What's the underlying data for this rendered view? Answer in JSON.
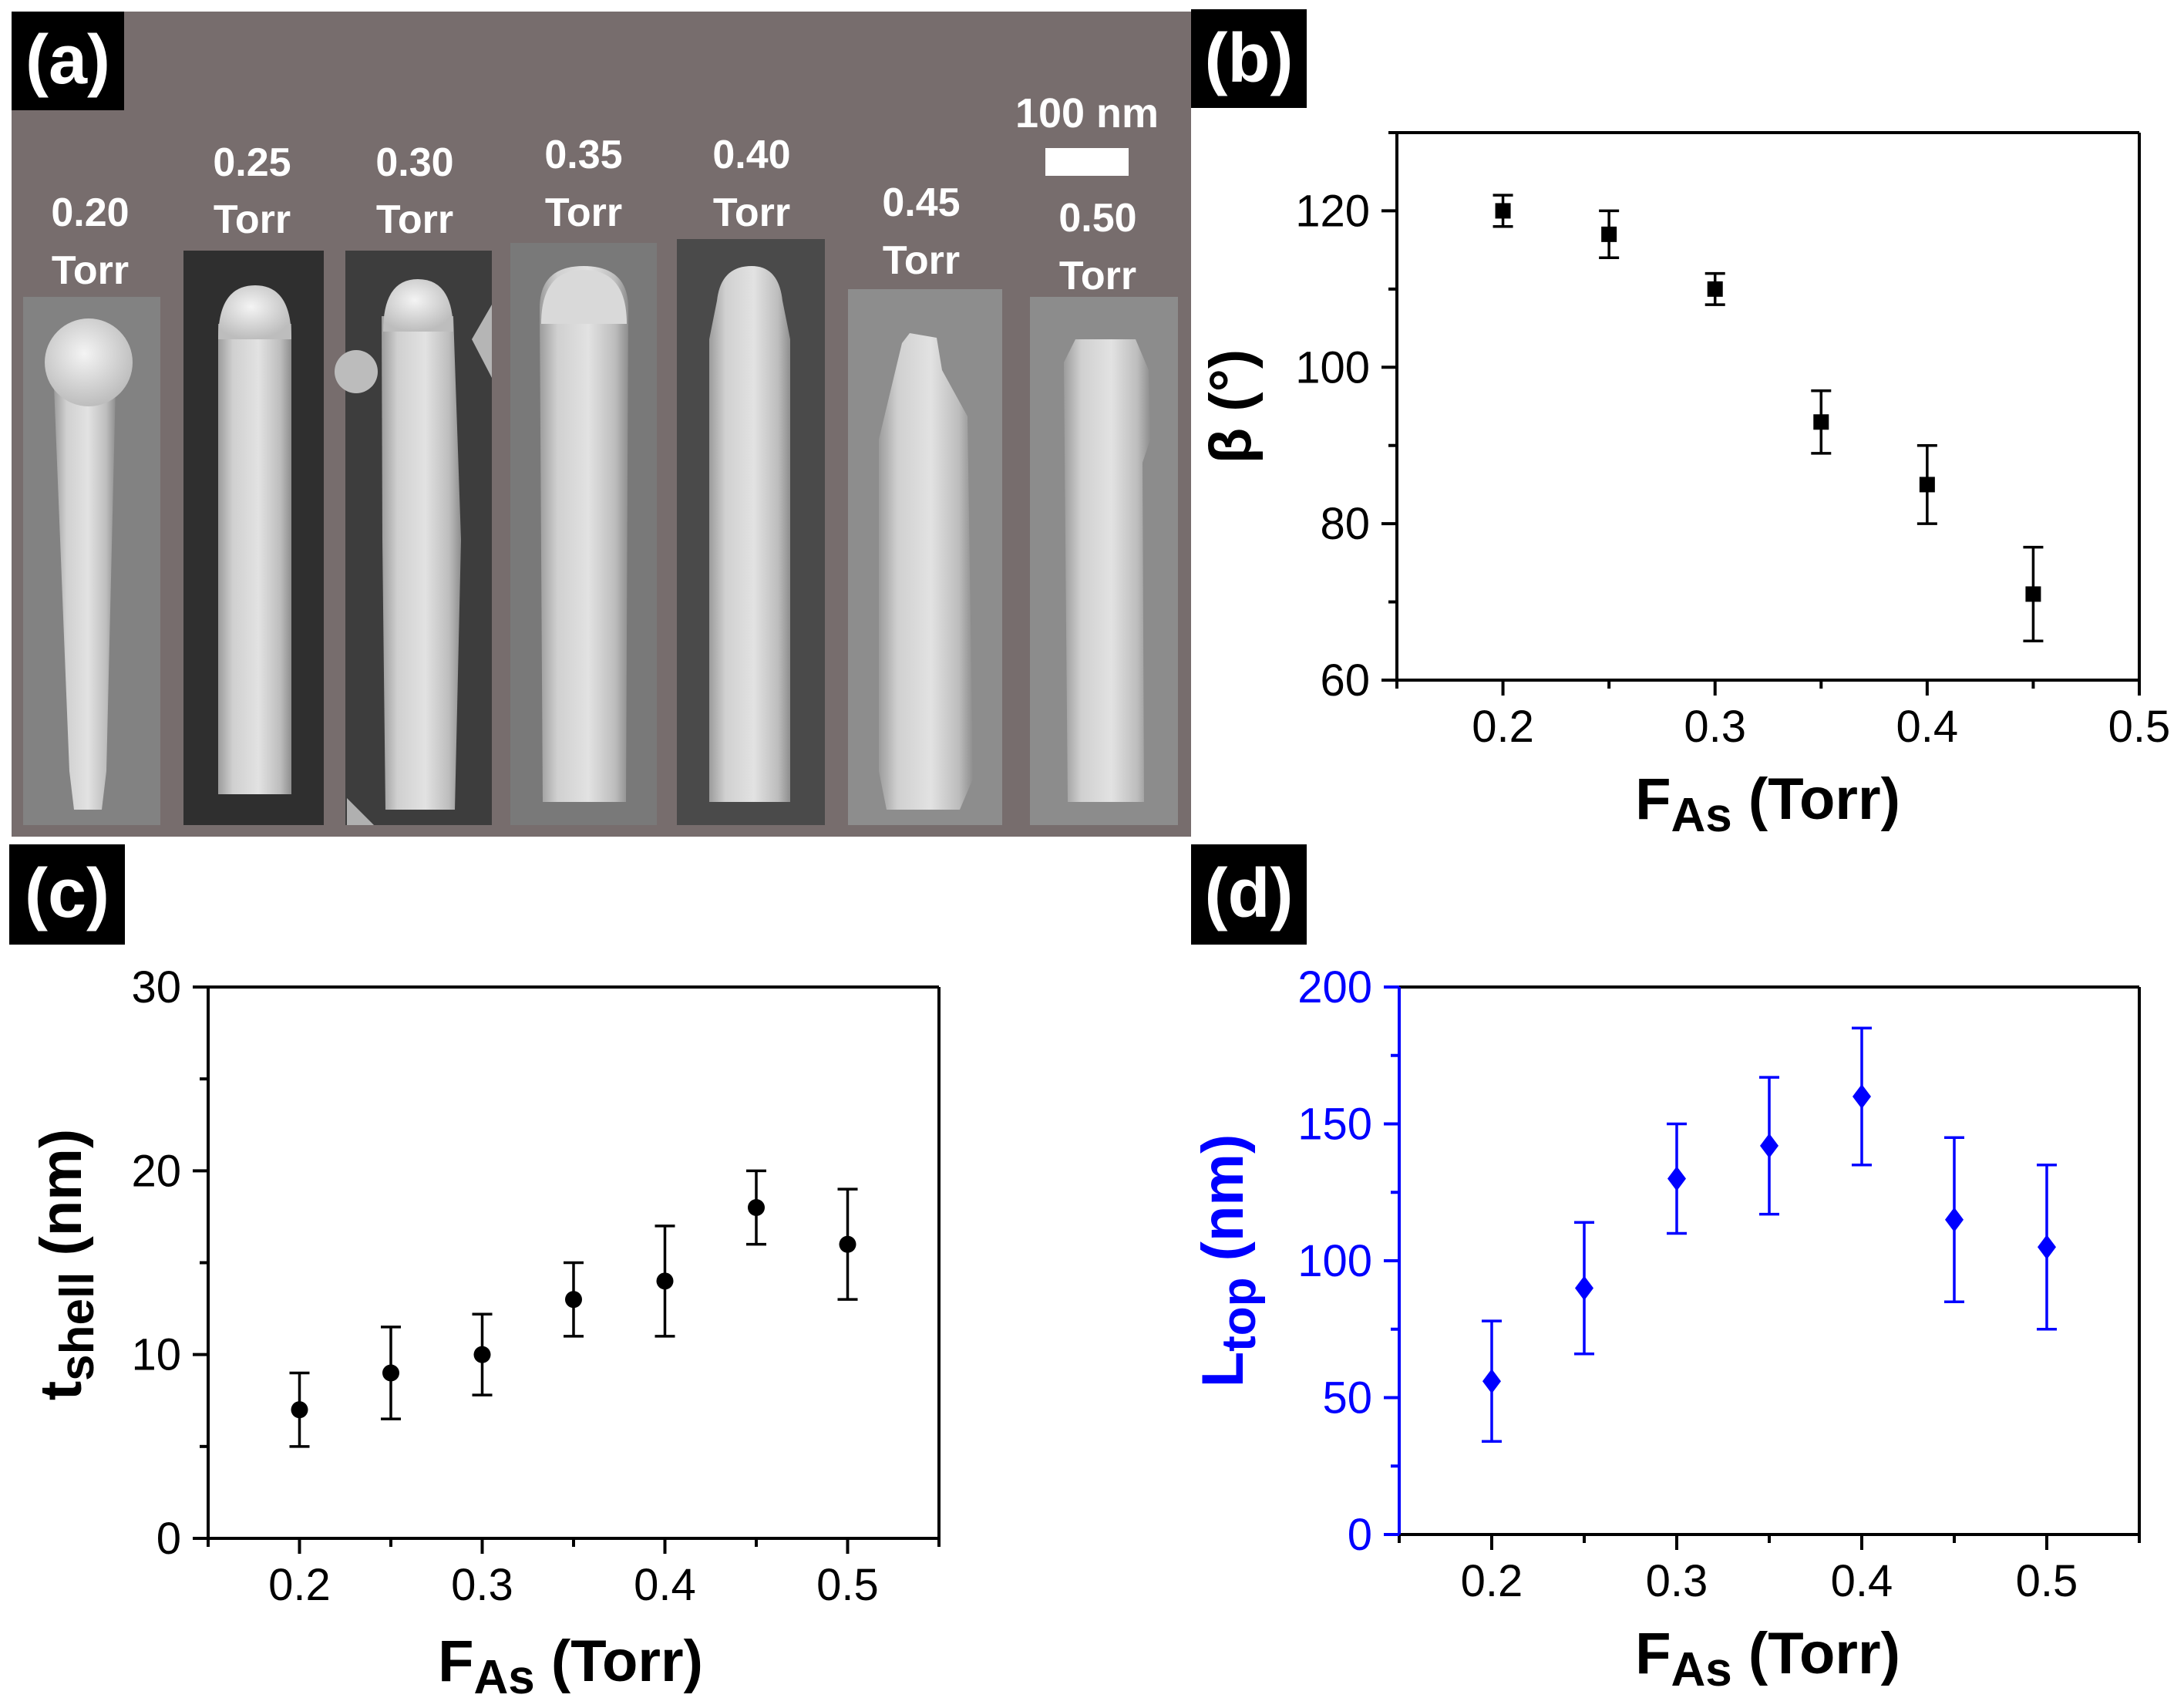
{
  "panel_a": {
    "label": "(a)",
    "scale_bar": "100 nm",
    "samples": [
      {
        "pressure": "0.20",
        "unit": "Torr"
      },
      {
        "pressure": "0.25",
        "unit": "Torr"
      },
      {
        "pressure": "0.30",
        "unit": "Torr"
      },
      {
        "pressure": "0.35",
        "unit": "Torr"
      },
      {
        "pressure": "0.40",
        "unit": "Torr"
      },
      {
        "pressure": "0.45",
        "unit": "Torr"
      },
      {
        "pressure": "0.50",
        "unit": "Torr"
      }
    ]
  },
  "chart_data": [
    {
      "panel": "(b)",
      "type": "scatter",
      "marker": "square",
      "color": "#000000",
      "xlabel_main": "F",
      "xlabel_sub": "As",
      "xlabel_rest": " (Torr)",
      "ylabel": "β (°)",
      "xlim": [
        0.15,
        0.5
      ],
      "ylim": [
        60,
        130
      ],
      "xticks": [
        0.2,
        0.3,
        0.4,
        0.5
      ],
      "xtick_labels": [
        "0.2",
        "0.3",
        "0.4",
        "0.5"
      ],
      "yticks": [
        60,
        80,
        100,
        120
      ],
      "ytick_labels": [
        "60",
        "80",
        "100",
        "120"
      ],
      "x": [
        0.2,
        0.25,
        0.3,
        0.35,
        0.4,
        0.45
      ],
      "y": [
        120,
        117,
        110,
        93,
        85,
        71
      ],
      "err": [
        2,
        3,
        2,
        4,
        5,
        6
      ]
    },
    {
      "panel": "(c)",
      "type": "scatter",
      "marker": "circle",
      "color": "#000000",
      "xlabel_main": "F",
      "xlabel_sub": "As",
      "xlabel_rest": " (Torr)",
      "ylabel_main": "t",
      "ylabel_sub": "shell",
      "ylabel_rest": " (nm)",
      "xlim": [
        0.15,
        0.55
      ],
      "ylim": [
        0,
        30
      ],
      "xticks": [
        0.2,
        0.3,
        0.4,
        0.5
      ],
      "xtick_labels": [
        "0.2",
        "0.3",
        "0.4",
        "0.5"
      ],
      "yticks": [
        0,
        10,
        20,
        30
      ],
      "ytick_labels": [
        "0",
        "10",
        "20",
        "30"
      ],
      "x": [
        0.2,
        0.25,
        0.3,
        0.35,
        0.4,
        0.45,
        0.5
      ],
      "y": [
        7,
        9,
        10,
        13,
        14,
        18,
        16
      ],
      "err": [
        2,
        2.5,
        2.2,
        2,
        3,
        2,
        3
      ]
    },
    {
      "panel": "(d)",
      "type": "scatter",
      "marker": "diamond",
      "color": "#0000ff",
      "xlabel_main": "F",
      "xlabel_sub": "As",
      "xlabel_rest": " (Torr)",
      "ylabel_main": "L",
      "ylabel_sub": "top",
      "ylabel_rest": " (nm)",
      "xlim": [
        0.15,
        0.55
      ],
      "ylim": [
        0,
        200
      ],
      "xticks": [
        0.2,
        0.3,
        0.4,
        0.5
      ],
      "xtick_labels": [
        "0.2",
        "0.3",
        "0.4",
        "0.5"
      ],
      "yticks": [
        0,
        50,
        100,
        150,
        200
      ],
      "ytick_labels": [
        "0",
        "50",
        "100",
        "150",
        "200"
      ],
      "x": [
        0.2,
        0.25,
        0.3,
        0.35,
        0.4,
        0.45,
        0.5
      ],
      "y": [
        56,
        90,
        130,
        142,
        160,
        115,
        105
      ],
      "err": [
        22,
        24,
        20,
        25,
        25,
        30,
        30
      ]
    }
  ]
}
